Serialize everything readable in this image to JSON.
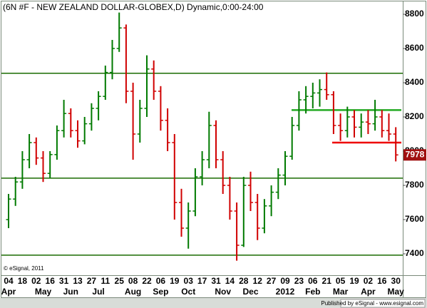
{
  "chart_data": {
    "type": "ohlc",
    "title": "(6N #F - NEW ZEALAND DOLLAR-GLOBEX,D) Dynamic,0:00-24:00",
    "footnote": "© eSignal, 2011",
    "publisher": "Published by eSignal - www.esignal.com",
    "categories": [
      "04",
      null,
      "18",
      null,
      "02",
      null,
      "16",
      null,
      "31",
      null,
      "13",
      null,
      "27",
      null,
      "11",
      null,
      "25",
      null,
      "08",
      null,
      "22",
      null,
      "06",
      null,
      "19",
      null,
      "03",
      null,
      "17",
      null,
      "31",
      null,
      "14",
      null,
      "28",
      null,
      "12",
      null,
      "27",
      null,
      "09",
      null,
      "23",
      null,
      "06",
      null,
      "21",
      null,
      "05",
      null,
      "19",
      null,
      "02",
      null,
      "16",
      null,
      "30"
    ],
    "month_labels": [
      "Apr",
      null,
      null,
      null,
      null,
      "May",
      null,
      null,
      null,
      "Jun",
      null,
      null,
      null,
      "Jul",
      null,
      null,
      null,
      null,
      "Aug",
      null,
      null,
      null,
      "Sep",
      null,
      null,
      null,
      "Oct",
      null,
      null,
      null,
      null,
      "Nov",
      null,
      null,
      null,
      "Dec",
      null,
      null,
      null,
      null,
      "2012",
      null,
      null,
      null,
      "Feb",
      null,
      null,
      null,
      "Mar",
      null,
      null,
      null,
      "Apr",
      null,
      null,
      null,
      "May"
    ],
    "open": [
      7600,
      7720,
      7820,
      7950,
      8050,
      7960,
      7870,
      7980,
      8120,
      8220,
      8120,
      8060,
      8160,
      8250,
      8320,
      8460,
      8600,
      8720,
      8350,
      8100,
      8250,
      8480,
      8350,
      8180,
      8050,
      7700,
      7550,
      7650,
      7850,
      7950,
      8150,
      7950,
      7800,
      7650,
      7450,
      7800,
      7700,
      7550,
      7680,
      7760,
      7860,
      7970,
      8150,
      8300,
      8320,
      8340,
      8360,
      8330,
      8150,
      8120,
      8200,
      8140,
      8170,
      8160,
      8200,
      8120,
      8100
    ],
    "high": [
      7750,
      7850,
      8000,
      8100,
      8080,
      8000,
      8000,
      8150,
      8300,
      8250,
      8180,
      8200,
      8280,
      8350,
      8500,
      8650,
      8810,
      8740,
      8400,
      8300,
      8560,
      8530,
      8380,
      8250,
      8100,
      7780,
      7700,
      7900,
      8000,
      8230,
      8180,
      8000,
      7850,
      7700,
      7850,
      7880,
      7750,
      7720,
      7800,
      7900,
      8000,
      8200,
      8350,
      8380,
      8400,
      8420,
      8460,
      8350,
      8220,
      8260,
      8240,
      8220,
      8240,
      8300,
      8240,
      8220,
      8140
    ],
    "low": [
      7550,
      7680,
      7780,
      7900,
      7920,
      7820,
      7840,
      7950,
      8080,
      8080,
      8020,
      8040,
      8120,
      8180,
      8300,
      8420,
      8580,
      8280,
      7950,
      8050,
      8200,
      8300,
      8120,
      8000,
      7600,
      7500,
      7430,
      7620,
      7800,
      7900,
      7900,
      7750,
      7600,
      7360,
      7440,
      7650,
      7480,
      7520,
      7620,
      7720,
      7800,
      7950,
      8120,
      8220,
      8250,
      8260,
      8300,
      8100,
      8060,
      8080,
      8080,
      8080,
      8100,
      8120,
      8080,
      8060,
      7940
    ],
    "close": [
      7720,
      7820,
      7950,
      8050,
      7960,
      7870,
      7980,
      8120,
      8220,
      8120,
      8060,
      8160,
      8250,
      8320,
      8460,
      8600,
      8720,
      8350,
      8100,
      8250,
      8480,
      8350,
      8180,
      8050,
      7700,
      7550,
      7650,
      7850,
      7950,
      8150,
      7950,
      7800,
      7650,
      7450,
      7800,
      7700,
      7550,
      7680,
      7760,
      7860,
      7970,
      8150,
      8300,
      8320,
      8340,
      8360,
      8330,
      8150,
      8120,
      8200,
      8140,
      8170,
      8160,
      8200,
      8120,
      8100,
      7978
    ],
    "up_color": "#007a00",
    "down_color": "#d00000",
    "hlines": [
      {
        "value": 8455,
        "color": "#1a6b00"
      },
      {
        "value": 7842,
        "color": "#1a6b00"
      },
      {
        "value": 7392,
        "color": "#1a6b00"
      },
      {
        "value": 8240,
        "color": "#22aa22"
      },
      {
        "value": 8050,
        "color": "#ee0000"
      }
    ],
    "ylim": [
      7275,
      8875
    ],
    "yticks": [
      7400,
      7600,
      7800,
      8000,
      8200,
      8400,
      8600,
      8800
    ],
    "grid": false
  }
}
